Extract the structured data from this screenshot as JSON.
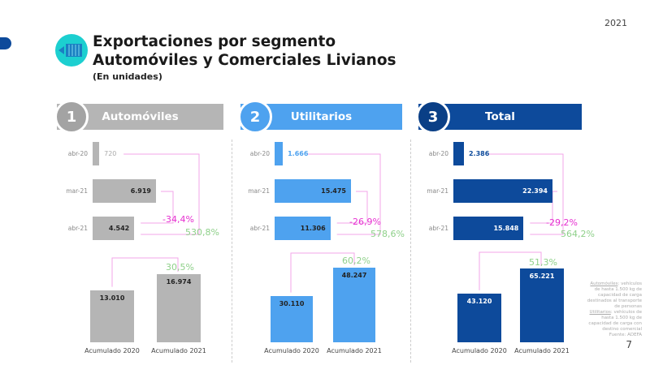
{
  "year": "2021",
  "title_line1": "Exportaciones por segmento",
  "title_line2": "Automóviles y Comerciales Livianos",
  "subtitle": "(En unidades)",
  "page_number": "7",
  "footnote": {
    "automoviles_term": "Automóviles",
    "automoviles_text": ": vehículos de hasta 1.500 kg de capacidad de carga destinados al transporte de personas",
    "utilitarios_term": "Utilitarios",
    "utilitarios_text": ": vehículos de hasta 1.500 kg de capacidad de carga con destino comercial",
    "source": "Fuente: ADEFA"
  },
  "colors": {
    "automoviles": "#b5b5b5",
    "utilitarios": "#4ea2ef",
    "total": "#0d4a9b",
    "neg_pct": "#e62fd0",
    "pos_pct": "#8fd08a",
    "connector": "#f3a6ea"
  },
  "chart_data": [
    {
      "type": "bar",
      "orientation": "horizontal+vertical",
      "number": "1",
      "title": "Automóviles",
      "color": "#b5b5b5",
      "monthly": {
        "categories": [
          "abr-20",
          "mar-21",
          "abr-21"
        ],
        "values": [
          720,
          6919,
          4542
        ],
        "labels": [
          "720",
          "6.919",
          "4.542"
        ]
      },
      "pct_month": "-34,4%",
      "pct_year": "530,8%",
      "cumulative": {
        "categories": [
          "Acumulado 2020",
          "Acumulado 2021"
        ],
        "values": [
          13010,
          16974
        ],
        "labels": [
          "13.010",
          "16.974"
        ],
        "pct": "30,5%"
      }
    },
    {
      "type": "bar",
      "orientation": "horizontal+vertical",
      "number": "2",
      "title": "Utilitarios",
      "color": "#4ea2ef",
      "monthly": {
        "categories": [
          "abr-20",
          "mar-21",
          "abr-21"
        ],
        "values": [
          1666,
          15475,
          11306
        ],
        "labels": [
          "1.666",
          "15.475",
          "11.306"
        ]
      },
      "pct_month": "-26,9%",
      "pct_year": "578,6%",
      "cumulative": {
        "categories": [
          "Acumulado 2020",
          "Acumulado 2021"
        ],
        "values": [
          30110,
          48247
        ],
        "labels": [
          "30.110",
          "48.247"
        ],
        "pct": "60,2%"
      }
    },
    {
      "type": "bar",
      "orientation": "horizontal+vertical",
      "number": "3",
      "title": "Total",
      "color": "#0d4a9b",
      "monthly": {
        "categories": [
          "abr-20",
          "mar-21",
          "abr-21"
        ],
        "values": [
          2386,
          22394,
          15848
        ],
        "labels": [
          "2.386",
          "22.394",
          "15.848"
        ]
      },
      "pct_month": "-29,2%",
      "pct_year": "564,2%",
      "cumulative": {
        "categories": [
          "Acumulado 2020",
          "Acumulado 2021"
        ],
        "values": [
          43120,
          65221
        ],
        "labels": [
          "43.120",
          "65.221"
        ],
        "pct": "51,3%"
      }
    }
  ]
}
